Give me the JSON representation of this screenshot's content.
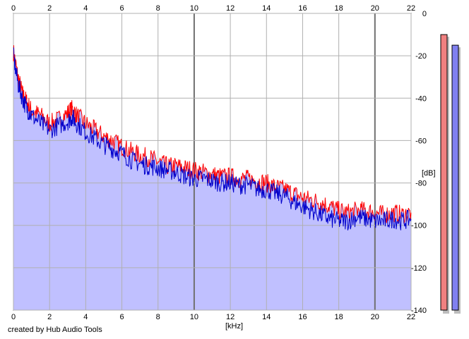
{
  "app": {
    "credit": "created by Hub Audio Tools"
  },
  "colors": {
    "background": "#ffffff",
    "fill": "#c0c0ff",
    "left_channel": "#ff0000",
    "right_channel": "#0000cc",
    "grid_minor": "#b0b0b0",
    "grid_major": "#707070",
    "meter_left": "#f08080",
    "meter_right": "#8080f0"
  },
  "meters": {
    "left_level_db": -10,
    "right_level_db": -15
  },
  "chart_data": {
    "type": "line",
    "title": "",
    "xlabel": "[kHz]",
    "ylabel": "[dB]",
    "xlim": [
      0,
      22
    ],
    "ylim": [
      -140,
      0
    ],
    "x_ticks": [
      "0",
      "2",
      "4",
      "6",
      "8",
      "10",
      "12",
      "14",
      "16",
      "18",
      "20",
      "22"
    ],
    "y_ticks": [
      "0",
      "-20",
      "-40",
      "-60",
      "-80",
      "-100",
      "-120",
      "-140"
    ],
    "grid": true,
    "x": [
      0,
      0.25,
      0.5,
      0.75,
      1,
      1.5,
      2,
      2.5,
      3,
      3.25,
      3.5,
      4,
      4.5,
      5,
      5.5,
      6,
      6.5,
      7,
      7.5,
      8,
      8.5,
      9,
      9.5,
      10,
      10.5,
      11,
      11.5,
      12,
      12.5,
      13,
      13.5,
      14,
      14.5,
      15,
      15.5,
      16,
      16.5,
      17,
      17.5,
      18,
      18.5,
      19,
      19.5,
      20,
      20.5,
      21,
      21.5,
      22
    ],
    "series": [
      {
        "color": "#ff0000",
        "values": [
          -18,
          -30,
          -38,
          -42,
          -46,
          -48,
          -52,
          -50,
          -47,
          -45,
          -48,
          -52,
          -55,
          -58,
          -60,
          -63,
          -65,
          -67,
          -68,
          -70,
          -72,
          -72,
          -73,
          -74,
          -75,
          -76,
          -77,
          -77,
          -78,
          -78,
          -79,
          -80,
          -82,
          -83,
          -85,
          -87,
          -88,
          -89,
          -91,
          -93,
          -94,
          -93,
          -93,
          -94,
          -95,
          -94,
          -95,
          -94
        ]
      },
      {
        "color": "#0000cc",
        "values": [
          -20,
          -33,
          -40,
          -45,
          -48,
          -52,
          -55,
          -53,
          -51,
          -49,
          -52,
          -56,
          -59,
          -62,
          -64,
          -66,
          -69,
          -71,
          -72,
          -73,
          -74,
          -75,
          -77,
          -78,
          -78,
          -79,
          -80,
          -80,
          -81,
          -81,
          -83,
          -83,
          -85,
          -86,
          -89,
          -91,
          -93,
          -95,
          -97,
          -98,
          -98,
          -96,
          -97,
          -98,
          -98,
          -97,
          -98,
          -97
        ]
      }
    ]
  }
}
